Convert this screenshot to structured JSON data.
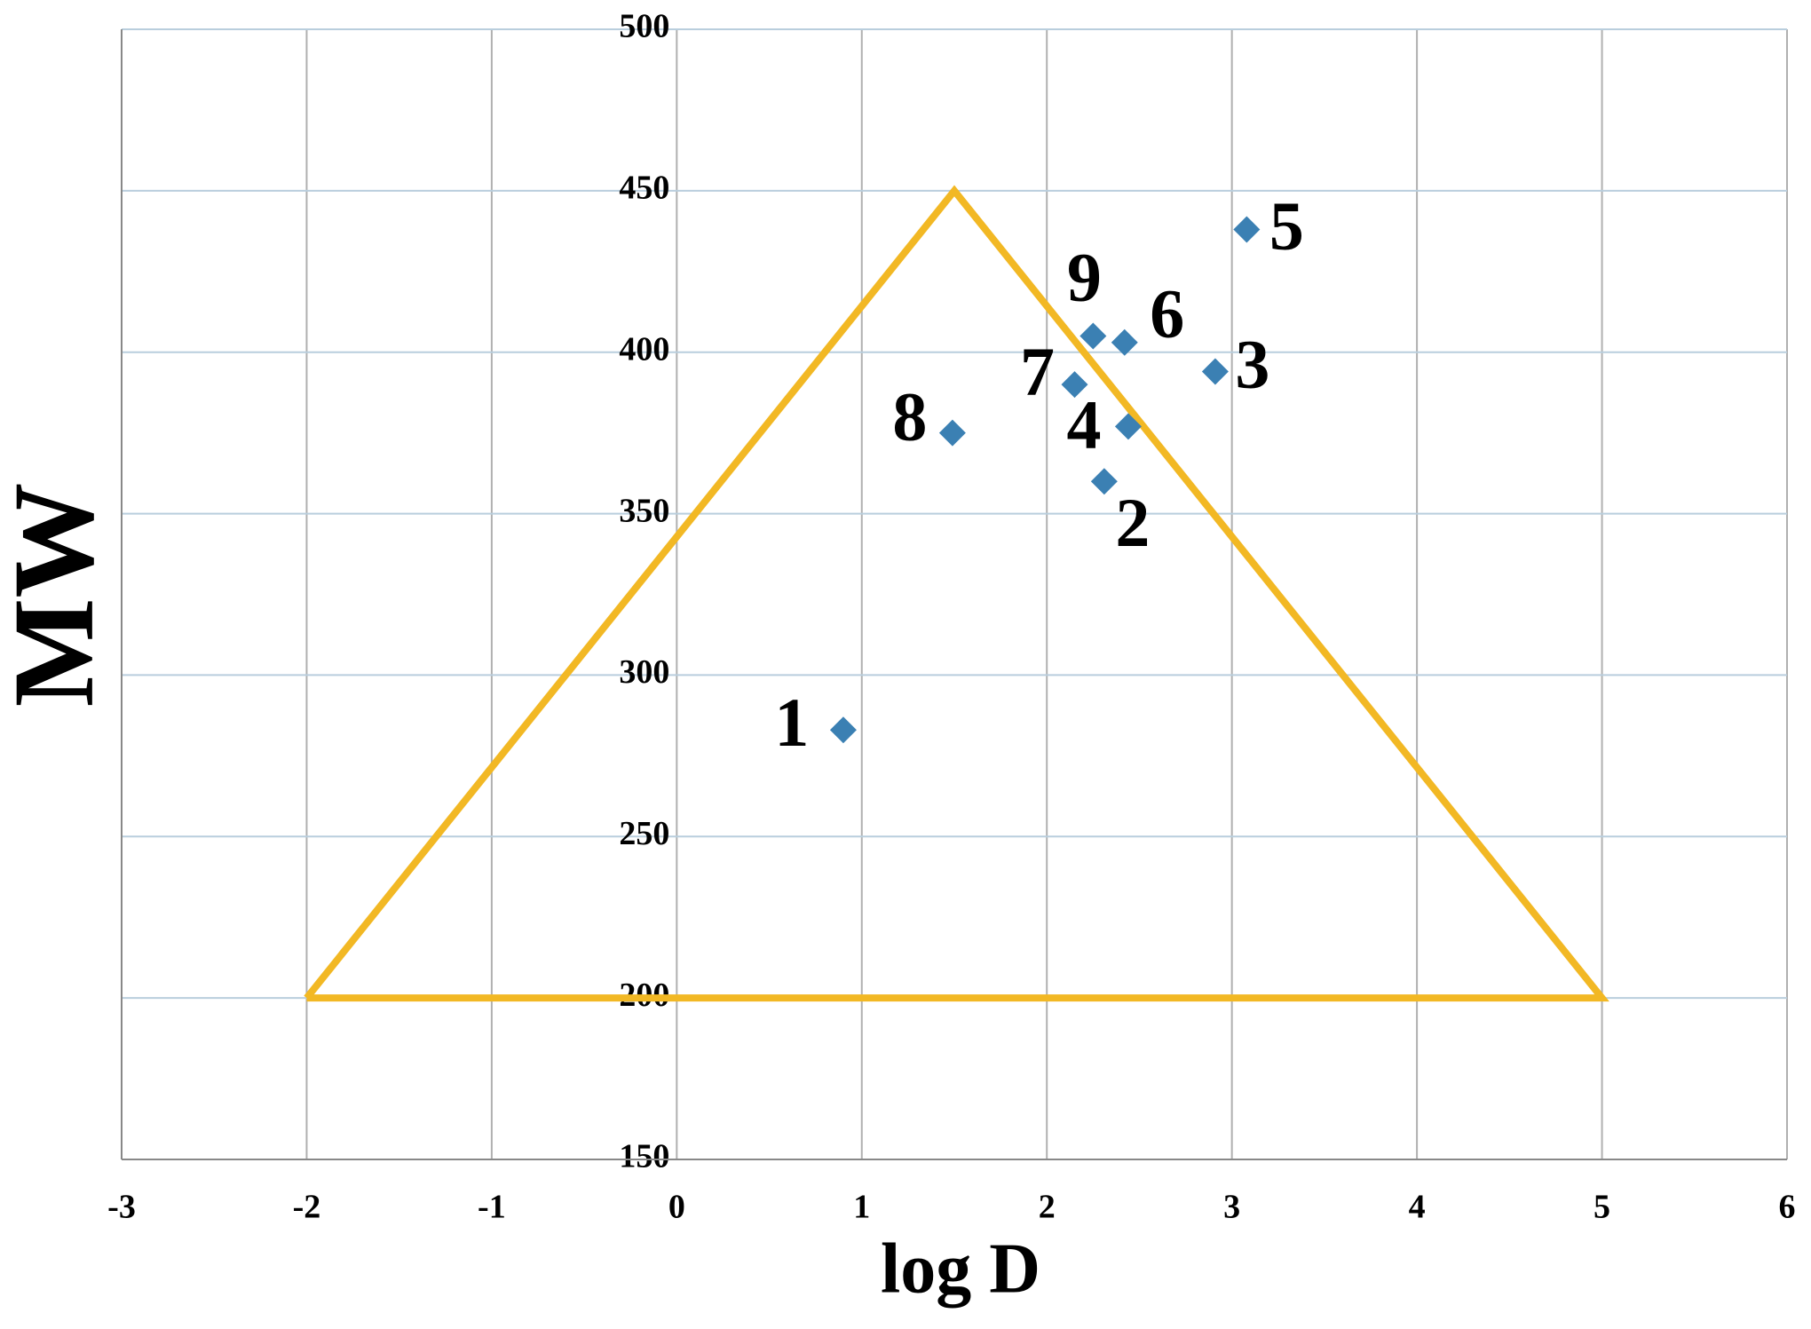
{
  "chart_data": {
    "type": "scatter",
    "x_label": "log D",
    "y_label": "MW",
    "x": [
      0.9,
      2.31,
      2.91,
      2.44,
      3.08,
      2.42,
      2.15,
      1.49,
      2.25
    ],
    "y": [
      283,
      360,
      394,
      377,
      438,
      403,
      390,
      375,
      405
    ],
    "point_labels": [
      "1",
      "2",
      "3",
      "4",
      "5",
      "6",
      "7",
      "8",
      "9"
    ],
    "color": "#3b80b3",
    "region": {
      "x": [
        -2,
        1.5,
        5,
        -2
      ],
      "y": [
        200,
        450,
        200,
        200
      ],
      "color": "#f2b824"
    },
    "xlim": [
      -3,
      6
    ],
    "xticks": [
      -3,
      -2,
      -1,
      0,
      1,
      2,
      3,
      4,
      5,
      6
    ],
    "ylim": [
      150,
      500
    ],
    "yticks": [
      150,
      200,
      250,
      300,
      350,
      400,
      450,
      500
    ],
    "grid": true
  }
}
